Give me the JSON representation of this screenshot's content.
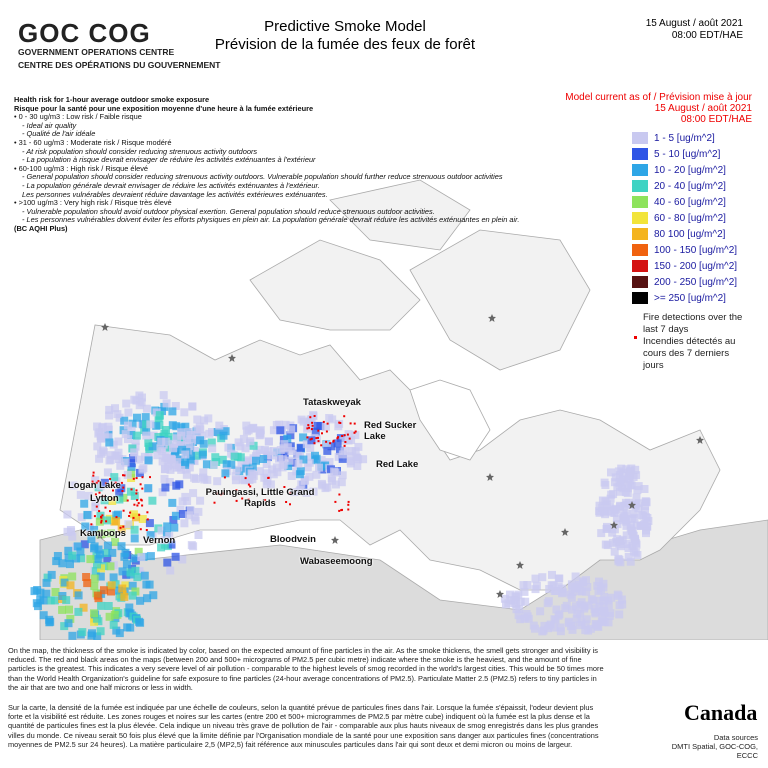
{
  "header": {
    "logo": "GOC COG",
    "logo_en": "GOVERNMENT OPERATIONS CENTRE",
    "logo_fr": "CENTRE DES OPÉRATIONS DU GOUVERNEMENT",
    "title": "Predictive Smoke Model",
    "subtitle": "Prévision de la fumée des feux de forêt",
    "date": "15 August / août 2021",
    "time": "08:00 EDT/HAE"
  },
  "model_current": [
    "Model current as of / Prévision mise à jour",
    "15 August / août 2021",
    "08:00 EDT/HAE"
  ],
  "health": {
    "lines": [
      {
        "text": "Health risk for 1-hour average outdoor smoke exposure",
        "style": "h"
      },
      {
        "text": "Risque pour la santé pour une exposition moyenne d'une heure à la fumée extérieure",
        "style": "h"
      },
      {
        "text": "• 0 - 30 ug/m3 : Low risk / Faible risque",
        "style": "n"
      },
      {
        "text": "- Ideal air quality",
        "style": "ind"
      },
      {
        "text": "- Qualité de l'air idéale",
        "style": "ind"
      },
      {
        "text": "• 31 - 60 ug/m3 : Moderate risk / Risque modéré",
        "style": "n"
      },
      {
        "text": "- At risk population should consider reducing strenuous activity outdoors",
        "style": "ind"
      },
      {
        "text": "- La population à risque devrait envisager de réduire les activités exténuantes à l'extérieur",
        "style": "ind"
      },
      {
        "text": "• 60-100 ug/m3 : High risk / Risque élevé",
        "style": "n"
      },
      {
        "text": "- General population should consider reducing strenuous activity outdoors. Vulnerable population should further reduce strenuous outdoor activities",
        "style": "ind"
      },
      {
        "text": "- La population générale devrait envisager de réduire les activités exténuantes à l'extérieur.",
        "style": "ind"
      },
      {
        "text": "Les personnes vulnérables devraient réduire davantage les activités extérieures exténuantes.",
        "style": "ind"
      },
      {
        "text": "• >100 ug/m3 : Very high risk / Risque très élevé",
        "style": "n"
      },
      {
        "text": "- Vulnerable population should avoid outdoor physical exertion. General population should reduce strenuous outdoor activities.",
        "style": "ind"
      },
      {
        "text": "- Les personnes vulnérables doivent éviter les efforts physiques en plein air. La population générale devrait réduire les activités exténuantes en plein air.",
        "style": "ind"
      },
      {
        "text": "(BC AQHI Plus)",
        "style": "h"
      }
    ]
  },
  "legend": {
    "items": [
      {
        "label": "1 - 5 [ug/m^2]",
        "color": "#c9c9f0"
      },
      {
        "label": "5 - 10 [ug/m^2]",
        "color": "#2f55e6"
      },
      {
        "label": "10 - 20 [ug/m^2]",
        "color": "#2ea6e6"
      },
      {
        "label": "20 - 40 [ug/m^2]",
        "color": "#3fd3c3"
      },
      {
        "label": "40 - 60 [ug/m^2]",
        "color": "#8ee35c"
      },
      {
        "label": "60 - 80 [ug/m^2]",
        "color": "#f2e43a"
      },
      {
        "label": "80 100 [ug/m^2]",
        "color": "#f4b41e"
      },
      {
        "label": "100 - 150 [ug/m^2]",
        "color": "#f0620f"
      },
      {
        "label": "150 - 200 [ug/m^2]",
        "color": "#d41212"
      },
      {
        "label": "200 - 250 [ug/m^2]",
        "color": "#561212"
      },
      {
        "label": ">= 250 [ug/m^2]",
        "color": "#000000"
      }
    ],
    "fire_en": "Fire detections over the last 7 days",
    "fire_fr": "Incendies détectés au cours des 7 derniers jours"
  },
  "places": [
    "Tataskweyak",
    "Red Sucker Lake",
    "Red Lake",
    "Logan Lake",
    "Lytton",
    "Pauingassi, Little Grand Rapids",
    "Kamloops",
    "Vernon",
    "Bloodvein",
    "Wabaseemoong"
  ],
  "footer": {
    "en": "On the map, the thickness of the smoke is indicated by color, based on the expected amount of fine particles in the air. As the smoke thickens, the smell gets stronger and visibility is reduced. The red and black areas on the maps (between 200 and 500+ micrograms of PM2.5 per cubic metre) indicate where the smoke is the heaviest, and the amount of fine particles is the greatest. This indicates a very severe level of air pollution - comparable to the highest levels of smog recorded in the world's largest cities. This would be 50 times more than the World Health Organization's guideline for safe exposure to fine particles (24-hour average concentrations of PM2.5). Particulate Matter 2.5 (PM2.5) refers to tiny particles in the air that are two and one half microns or less in width.",
    "fr": "Sur la carte, la densité de la fumée est indiquée par une échelle de couleurs, selon la quantité prévue de particules fines dans l'air. Lorsque la fumée s'épaissit, l'odeur devient plus forte et la visibilité est réduite. Les zones rouges et noires sur les cartes (entre 200 et 500+ microgrammes de PM2.5 par mètre cube) indiquent où la fumée est la plus dense et la quantité de particules fines est la plus élevée. Cela indique un niveau très grave de pollution de l'air - comparable aux plus hauts niveaux de smog enregistrés dans les plus grandes villes du monde. Ce niveau serait 50 fois plus élevé que la limite définie par l'Organisation mondiale de la santé pour une exposition sans danger aux particules fines (concentrations moyennes de PM2.5 sur 24 heures). La matière particulaire 2,5 (MP2,5) fait référence aux minuscules particules dans l'air qui sont deux et demi micron ou moins de largeur."
  },
  "credits": {
    "canada": "Canada",
    "sources": [
      "Data sources",
      "DMTI Spatial, GOC-COG,",
      "ECCC"
    ]
  }
}
